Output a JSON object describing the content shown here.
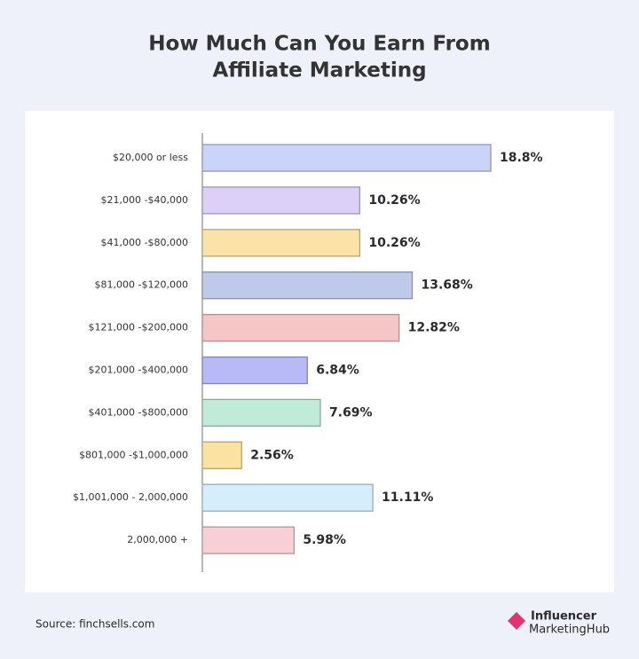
{
  "chart_data": {
    "type": "bar",
    "orientation": "horizontal",
    "title": [
      "How Much Can You Earn From",
      "Affiliate Marketing"
    ],
    "categories": [
      "$20,000 or less",
      "$21,000 -$40,000",
      "$41,000 -$80,000",
      "$81,000 -$120,000",
      "$121,000 -$200,000",
      "$201,000 -$400,000",
      "$401,000 -$800,000",
      "$801,000 -$1,000,000",
      "$1,001,000 - 2,000,000",
      "2,000,000 +"
    ],
    "values": [
      18.8,
      10.26,
      10.26,
      13.68,
      12.82,
      6.84,
      7.69,
      2.56,
      11.11,
      5.98
    ],
    "value_labels": [
      "18.8%",
      "10.26%",
      "10.26%",
      "13.68%",
      "12.82%",
      "6.84%",
      "7.69%",
      "2.56%",
      "11.11%",
      "5.98%"
    ],
    "colors": [
      "#cad3f8",
      "#ddd0f8",
      "#fbe3a8",
      "#bfcaea",
      "#f6c5c6",
      "#b7baf6",
      "#c0ebd9",
      "#fbe2a2",
      "#d4eefb",
      "#f8d0d4"
    ],
    "source": "Source: finchsells.com",
    "logo": [
      "Influencer",
      "MarketingHub"
    ]
  }
}
